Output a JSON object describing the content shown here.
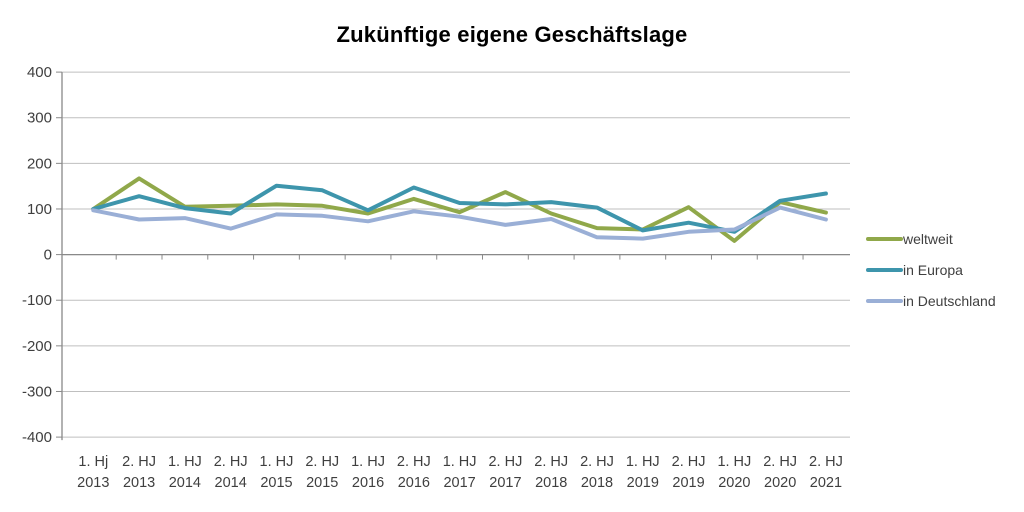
{
  "title": "Zukünftige eigene Geschäftslage",
  "chart_data": {
    "type": "line",
    "title": "Zukünftige eigene Geschäftslage",
    "categories": [
      "1. Hj 2013",
      "2. HJ 2013",
      "1. HJ 2014",
      "2. HJ 2014",
      "1. HJ 2015",
      "2. HJ 2015",
      "1. HJ 2016",
      "2. HJ 2016",
      "1. HJ 2017",
      "2. HJ 2017",
      "2. HJ 2018",
      "2. HJ 2018",
      "1. HJ 2019",
      "2. HJ 2019",
      "1. HJ 2020",
      "2. HJ 2020",
      "2. HJ 2021"
    ],
    "series": [
      {
        "name": "weltweit",
        "color": "#90A84A",
        "values": [
          100,
          167,
          105,
          107,
          110,
          107,
          90,
          122,
          93,
          137,
          90,
          58,
          55,
          104,
          30,
          115,
          92
        ]
      },
      {
        "name": "in Europa",
        "color": "#3E95AC",
        "values": [
          100,
          128,
          102,
          90,
          151,
          141,
          97,
          147,
          113,
          110,
          115,
          103,
          53,
          70,
          50,
          118,
          134
        ]
      },
      {
        "name": "in Deutschland",
        "color": "#9AAFD6",
        "values": [
          97,
          77,
          80,
          57,
          88,
          85,
          73,
          95,
          83,
          65,
          78,
          38,
          35,
          50,
          55,
          103,
          77
        ]
      }
    ],
    "ylim": [
      -400,
      400
    ],
    "ytick_step": 100,
    "yticks": [
      "400",
      "300",
      "200",
      "100",
      "0",
      "-100",
      "-200",
      "-300",
      "-400"
    ],
    "grid": true,
    "legend_position": "right",
    "xlabel": "",
    "ylabel": ""
  },
  "style": {
    "grid_color": "#BFBFBF",
    "axis_color": "#898989",
    "tick_label_color": "#3F3F3F"
  }
}
